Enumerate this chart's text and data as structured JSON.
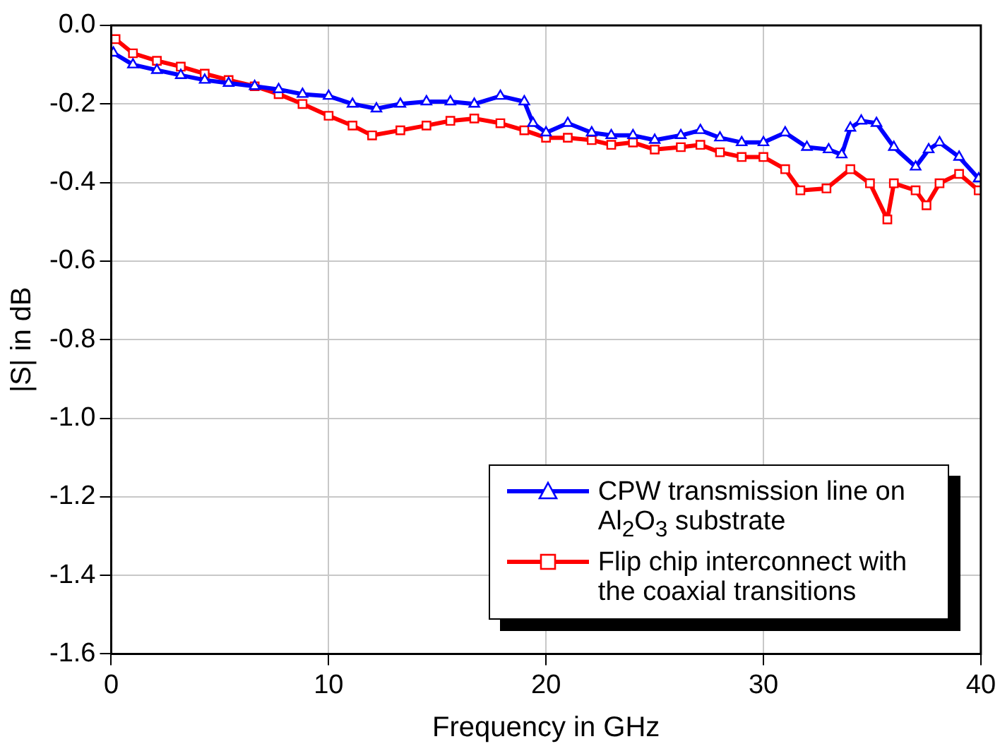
{
  "chart_data": {
    "type": "line",
    "xlabel": "Frequency in GHz",
    "ylabel": "|S| in dB",
    "xlim": [
      0,
      40
    ],
    "xticks": [
      0,
      10,
      20,
      30,
      40
    ],
    "ylim": [
      -1.6,
      0
    ],
    "yticks": [
      {
        "value": 0,
        "label": "0.0"
      },
      {
        "value": -0.2,
        "label": "-0.2"
      },
      {
        "value": -0.4,
        "label": "-0.4"
      },
      {
        "value": -0.6,
        "label": "-0.6"
      },
      {
        "value": -0.8,
        "label": "-0.8"
      },
      {
        "value": -1.0,
        "label": "-1.0"
      },
      {
        "value": -1.2,
        "label": "-1.2"
      },
      {
        "value": -1.4,
        "label": "-1.4"
      },
      {
        "value": -1.6,
        "label": "-1.6"
      }
    ],
    "grid": true,
    "legend": "bottom right",
    "series": [
      {
        "name": "CPW transmission line on Al$_{2}$O$_{3}$ substrate",
        "color": "#0000ff",
        "marker": "triangle",
        "x": [
          0.1,
          1,
          2.1,
          3.2,
          4.3,
          5.4,
          6.6,
          7.7,
          8.8,
          10,
          11.1,
          12.2,
          13.3,
          14.5,
          15.6,
          16.7,
          17.9,
          19,
          19.4,
          20,
          21,
          22.1,
          23,
          24,
          25,
          26.2,
          27.1,
          28,
          29,
          30,
          31,
          32,
          33,
          33.6,
          34,
          34.5,
          35.2,
          36,
          37,
          37.6,
          38.1,
          39,
          39.9
        ],
        "values": [
          -0.07,
          -0.1,
          -0.114,
          -0.127,
          -0.139,
          -0.147,
          -0.155,
          -0.163,
          -0.175,
          -0.18,
          -0.2,
          -0.212,
          -0.2,
          -0.194,
          -0.194,
          -0.2,
          -0.18,
          -0.194,
          -0.249,
          -0.273,
          -0.249,
          -0.273,
          -0.28,
          -0.28,
          -0.292,
          -0.28,
          -0.267,
          -0.286,
          -0.298,
          -0.298,
          -0.273,
          -0.31,
          -0.316,
          -0.329,
          -0.261,
          -0.243,
          -0.249,
          -0.31,
          -0.36,
          -0.316,
          -0.298,
          -0.335,
          -0.39
        ]
      },
      {
        "name": "Flip chip interconnect with the coaxial transitions",
        "color": "#ff0000",
        "marker": "square",
        "x": [
          0.2,
          1,
          2.1,
          3.2,
          4.3,
          5.4,
          6.6,
          7.7,
          8.8,
          10,
          11.1,
          12,
          13.3,
          14.5,
          15.6,
          16.7,
          17.9,
          19,
          20,
          21,
          22.1,
          23,
          24,
          25,
          26.2,
          27.1,
          28,
          29,
          30,
          31,
          31.7,
          32.9,
          34,
          34.9,
          35.7,
          36,
          37,
          37.5,
          38.1,
          39,
          39.9
        ],
        "values": [
          -0.035,
          -0.071,
          -0.09,
          -0.105,
          -0.123,
          -0.139,
          -0.155,
          -0.175,
          -0.2,
          -0.23,
          -0.255,
          -0.28,
          -0.267,
          -0.255,
          -0.243,
          -0.237,
          -0.249,
          -0.267,
          -0.286,
          -0.286,
          -0.292,
          -0.304,
          -0.298,
          -0.316,
          -0.31,
          -0.304,
          -0.323,
          -0.335,
          -0.335,
          -0.366,
          -0.42,
          -0.415,
          -0.366,
          -0.402,
          -0.494,
          -0.402,
          -0.42,
          -0.458,
          -0.402,
          -0.378,
          -0.42
        ]
      }
    ]
  }
}
